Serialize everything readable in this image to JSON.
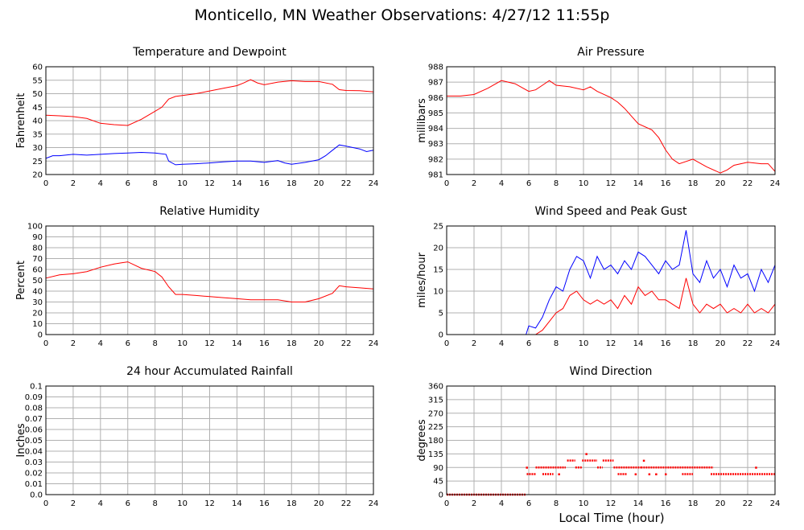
{
  "page": {
    "title": "Monticello, MN Weather Observations: 4/27/12 11:55p",
    "xlabel": "Local Time (hour)"
  },
  "chart_data": [
    {
      "id": "temp",
      "type": "line",
      "title": "Temperature and Dewpoint",
      "ylabel": "Fahrenheit",
      "xlim": [
        0,
        24
      ],
      "ylim": [
        20,
        60
      ],
      "xticks": [
        0,
        2,
        4,
        6,
        8,
        10,
        12,
        14,
        16,
        18,
        20,
        22,
        24
      ],
      "yticks": [
        20,
        25,
        30,
        35,
        40,
        45,
        50,
        55,
        60
      ],
      "ytick_labels": [
        "20",
        "25",
        "30",
        "35",
        "40",
        "45",
        "50",
        "55",
        "60"
      ],
      "grid": true,
      "series": [
        {
          "color": "#ff0000",
          "x": [
            0,
            1,
            2,
            3,
            4,
            5,
            6,
            7,
            8,
            8.5,
            9,
            9.5,
            10,
            11,
            12,
            13,
            14,
            14.5,
            15,
            15.5,
            16,
            17,
            18,
            19,
            20,
            21,
            21.5,
            22,
            23,
            24
          ],
          "y": [
            42,
            41.8,
            41.5,
            40.8,
            39,
            38.5,
            38.2,
            40.5,
            43.5,
            45,
            48,
            49,
            49.3,
            50,
            51,
            52,
            53,
            54,
            55.2,
            54,
            53.3,
            54.3,
            54.8,
            54.5,
            54.5,
            53.5,
            51.5,
            51.2,
            51.1,
            50.7
          ]
        },
        {
          "color": "#0000ff",
          "x": [
            0,
            0.5,
            1,
            2,
            3,
            4,
            5,
            6,
            7,
            8,
            8.8,
            9,
            9.5,
            10,
            11,
            12,
            13,
            14,
            15,
            16,
            17,
            17.5,
            18,
            19,
            20,
            20.5,
            21,
            21.5,
            22,
            23,
            23.5,
            24
          ],
          "y": [
            26,
            27,
            27,
            27.5,
            27.2,
            27.5,
            27.8,
            28,
            28.2,
            28,
            27.5,
            25,
            23.6,
            23.8,
            24,
            24.3,
            24.7,
            25,
            25,
            24.5,
            25.2,
            24.3,
            23.8,
            24.5,
            25.5,
            27,
            29,
            31,
            30.5,
            29.5,
            28.5,
            29
          ]
        }
      ]
    },
    {
      "id": "pressure",
      "type": "line",
      "title": "Air Pressure",
      "ylabel": "millibars",
      "xlim": [
        0,
        24
      ],
      "ylim": [
        981,
        988
      ],
      "xticks": [
        0,
        2,
        4,
        6,
        8,
        10,
        12,
        14,
        16,
        18,
        20,
        22,
        24
      ],
      "yticks": [
        981,
        982,
        983,
        984,
        985,
        986,
        987,
        988
      ],
      "ytick_labels": [
        "981",
        "982",
        "983",
        "984",
        "985",
        "986",
        "987",
        "988"
      ],
      "grid": true,
      "series": [
        {
          "color": "#ff0000",
          "x": [
            0,
            1,
            2,
            3,
            4,
            5,
            6,
            6.5,
            7,
            7.5,
            8,
            9,
            10,
            10.5,
            11,
            12,
            12.5,
            13,
            13.5,
            14,
            15,
            15.5,
            16,
            16.5,
            17,
            18,
            19,
            20,
            20.5,
            21,
            22,
            23,
            23.5,
            24
          ],
          "y": [
            986.1,
            986.1,
            986.2,
            986.6,
            987.1,
            986.9,
            986.4,
            986.5,
            986.8,
            987.1,
            986.8,
            986.7,
            986.5,
            986.7,
            986.4,
            986.0,
            985.7,
            985.3,
            984.8,
            984.3,
            983.9,
            983.4,
            982.6,
            982.0,
            981.7,
            982.0,
            981.5,
            981.1,
            981.3,
            981.6,
            981.8,
            981.7,
            981.7,
            981.2
          ]
        }
      ]
    },
    {
      "id": "humidity",
      "type": "line",
      "title": "Relative Humidity",
      "ylabel": "Percent",
      "xlim": [
        0,
        24
      ],
      "ylim": [
        0,
        100
      ],
      "xticks": [
        0,
        2,
        4,
        6,
        8,
        10,
        12,
        14,
        16,
        18,
        20,
        22,
        24
      ],
      "yticks": [
        0,
        10,
        20,
        30,
        40,
        50,
        60,
        70,
        80,
        90,
        100
      ],
      "ytick_labels": [
        "0",
        "10",
        "20",
        "30",
        "40",
        "50",
        "60",
        "70",
        "80",
        "90",
        "100"
      ],
      "grid": true,
      "series": [
        {
          "color": "#ff0000",
          "x": [
            0,
            1,
            2,
            3,
            4,
            5,
            5.5,
            6,
            7,
            8,
            8.5,
            9,
            9.5,
            10,
            11,
            12,
            13,
            14,
            15,
            16,
            17,
            18,
            19,
            20,
            21,
            21.5,
            22,
            23,
            24
          ],
          "y": [
            52,
            55,
            56,
            58,
            62,
            65,
            66,
            67,
            61,
            58,
            53,
            44,
            37,
            37,
            36,
            35,
            34,
            33,
            32,
            32,
            32,
            30,
            30,
            33,
            38,
            45,
            44,
            43,
            42
          ]
        }
      ]
    },
    {
      "id": "wind",
      "type": "line",
      "title": "Wind Speed and Peak Gust",
      "ylabel": "miles/hour",
      "xlim": [
        0,
        24
      ],
      "ylim": [
        0,
        25
      ],
      "xticks": [
        0,
        2,
        4,
        6,
        8,
        10,
        12,
        14,
        16,
        18,
        20,
        22,
        24
      ],
      "yticks": [
        0,
        5,
        10,
        15,
        20,
        25
      ],
      "ytick_labels": [
        "0",
        "5",
        "10",
        "15",
        "20",
        "25"
      ],
      "grid": true,
      "series": [
        {
          "color": "#0000ff",
          "x": [
            0,
            5.8,
            6,
            6.5,
            7,
            7.5,
            8,
            8.5,
            9,
            9.5,
            10,
            10.5,
            11,
            11.5,
            12,
            12.5,
            13,
            13.5,
            14,
            14.5,
            15,
            15.5,
            16,
            16.5,
            17,
            17.5,
            18,
            18.5,
            19,
            19.5,
            20,
            20.5,
            21,
            21.5,
            22,
            22.5,
            23,
            23.5,
            24
          ],
          "y": [
            0,
            0,
            2,
            1.5,
            4,
            8,
            11,
            10,
            15,
            18,
            17,
            13,
            18,
            15,
            16,
            14,
            17,
            15,
            19,
            18,
            16,
            14,
            17,
            15,
            16,
            24,
            14,
            12,
            17,
            13,
            15,
            11,
            16,
            13,
            14,
            10,
            15,
            12,
            16
          ]
        },
        {
          "color": "#ff0000",
          "x": [
            0,
            6.5,
            7,
            7.5,
            8,
            8.5,
            9,
            9.5,
            10,
            10.5,
            11,
            11.5,
            12,
            12.5,
            13,
            13.5,
            14,
            14.5,
            15,
            15.5,
            16,
            16.5,
            17,
            17.5,
            18,
            18.5,
            19,
            19.5,
            20,
            20.5,
            21,
            21.5,
            22,
            22.5,
            23,
            23.5,
            24
          ],
          "y": [
            0,
            0,
            1,
            3,
            5,
            6,
            9,
            10,
            8,
            7,
            8,
            7,
            8,
            6,
            9,
            7,
            11,
            9,
            10,
            8,
            8,
            7,
            6,
            13,
            7,
            5,
            7,
            6,
            7,
            5,
            6,
            5,
            7,
            5,
            6,
            5,
            7
          ]
        }
      ]
    },
    {
      "id": "rain",
      "type": "line",
      "title": "24 hour Accumulated Rainfall",
      "ylabel": "Inches",
      "xlim": [
        0,
        24
      ],
      "ylim": [
        0,
        0.1
      ],
      "xticks": [
        0,
        2,
        4,
        6,
        8,
        10,
        12,
        14,
        16,
        18,
        20,
        22,
        24
      ],
      "yticks": [
        0,
        0.01,
        0.02,
        0.03,
        0.04,
        0.05,
        0.06,
        0.07,
        0.08,
        0.09,
        0.1
      ],
      "ytick_labels": [
        "0.0",
        "0.01",
        "0.02",
        "0.03",
        "0.04",
        "0.05",
        "0.06",
        "0.07",
        "0.08",
        "0.09",
        "0.1"
      ],
      "grid": true,
      "series": [
        {
          "color": "#ff0000",
          "x": [
            0,
            24
          ],
          "y": [
            0,
            0
          ]
        }
      ]
    },
    {
      "id": "direction",
      "type": "scatter",
      "title": "Wind Direction",
      "ylabel": "degrees",
      "xlim": [
        0,
        24
      ],
      "ylim": [
        0,
        360
      ],
      "xticks": [
        0,
        2,
        4,
        6,
        8,
        10,
        12,
        14,
        16,
        18,
        20,
        22,
        24
      ],
      "yticks": [
        0,
        45,
        90,
        135,
        180,
        225,
        270,
        315,
        360
      ],
      "ytick_labels": [
        "0",
        "45",
        "90",
        "135",
        "180",
        "225",
        "270",
        "315",
        "360"
      ],
      "grid": true,
      "series": [
        {
          "color": "#ff0000",
          "segments": [
            {
              "x0": 0,
              "x1": 5.8,
              "y": 0
            },
            {
              "x0": 5.85,
              "x1": 6.5,
              "y": 68
            },
            {
              "x0": 6.5,
              "x1": 8.7,
              "y": 90
            },
            {
              "x0": 7.0,
              "x1": 7.8,
              "y": 68
            },
            {
              "x0": 8.8,
              "x1": 9.4,
              "y": 113
            },
            {
              "x0": 9.4,
              "x1": 9.9,
              "y": 90
            },
            {
              "x0": 9.9,
              "x1": 11.0,
              "y": 113
            },
            {
              "x0": 11.0,
              "x1": 11.4,
              "y": 90
            },
            {
              "x0": 11.4,
              "x1": 12.2,
              "y": 113
            },
            {
              "x0": 12.2,
              "x1": 14.2,
              "y": 90
            },
            {
              "x0": 12.5,
              "x1": 13.2,
              "y": 68
            },
            {
              "x0": 14.2,
              "x1": 17.2,
              "y": 90
            },
            {
              "x0": 17.2,
              "x1": 19.5,
              "y": 90
            },
            {
              "x0": 17.2,
              "x1": 18.0,
              "y": 68
            },
            {
              "x0": 19.3,
              "x1": 24,
              "y": 68
            }
          ],
          "points": [
            {
              "x": 5.85,
              "y": 90
            },
            {
              "x": 10.2,
              "y": 135
            },
            {
              "x": 14.4,
              "y": 113
            },
            {
              "x": 14.8,
              "y": 68
            },
            {
              "x": 15.3,
              "y": 68
            },
            {
              "x": 22.6,
              "y": 90
            },
            {
              "x": 8.2,
              "y": 68
            },
            {
              "x": 13.8,
              "y": 68
            },
            {
              "x": 16.0,
              "y": 68
            }
          ]
        }
      ]
    }
  ]
}
